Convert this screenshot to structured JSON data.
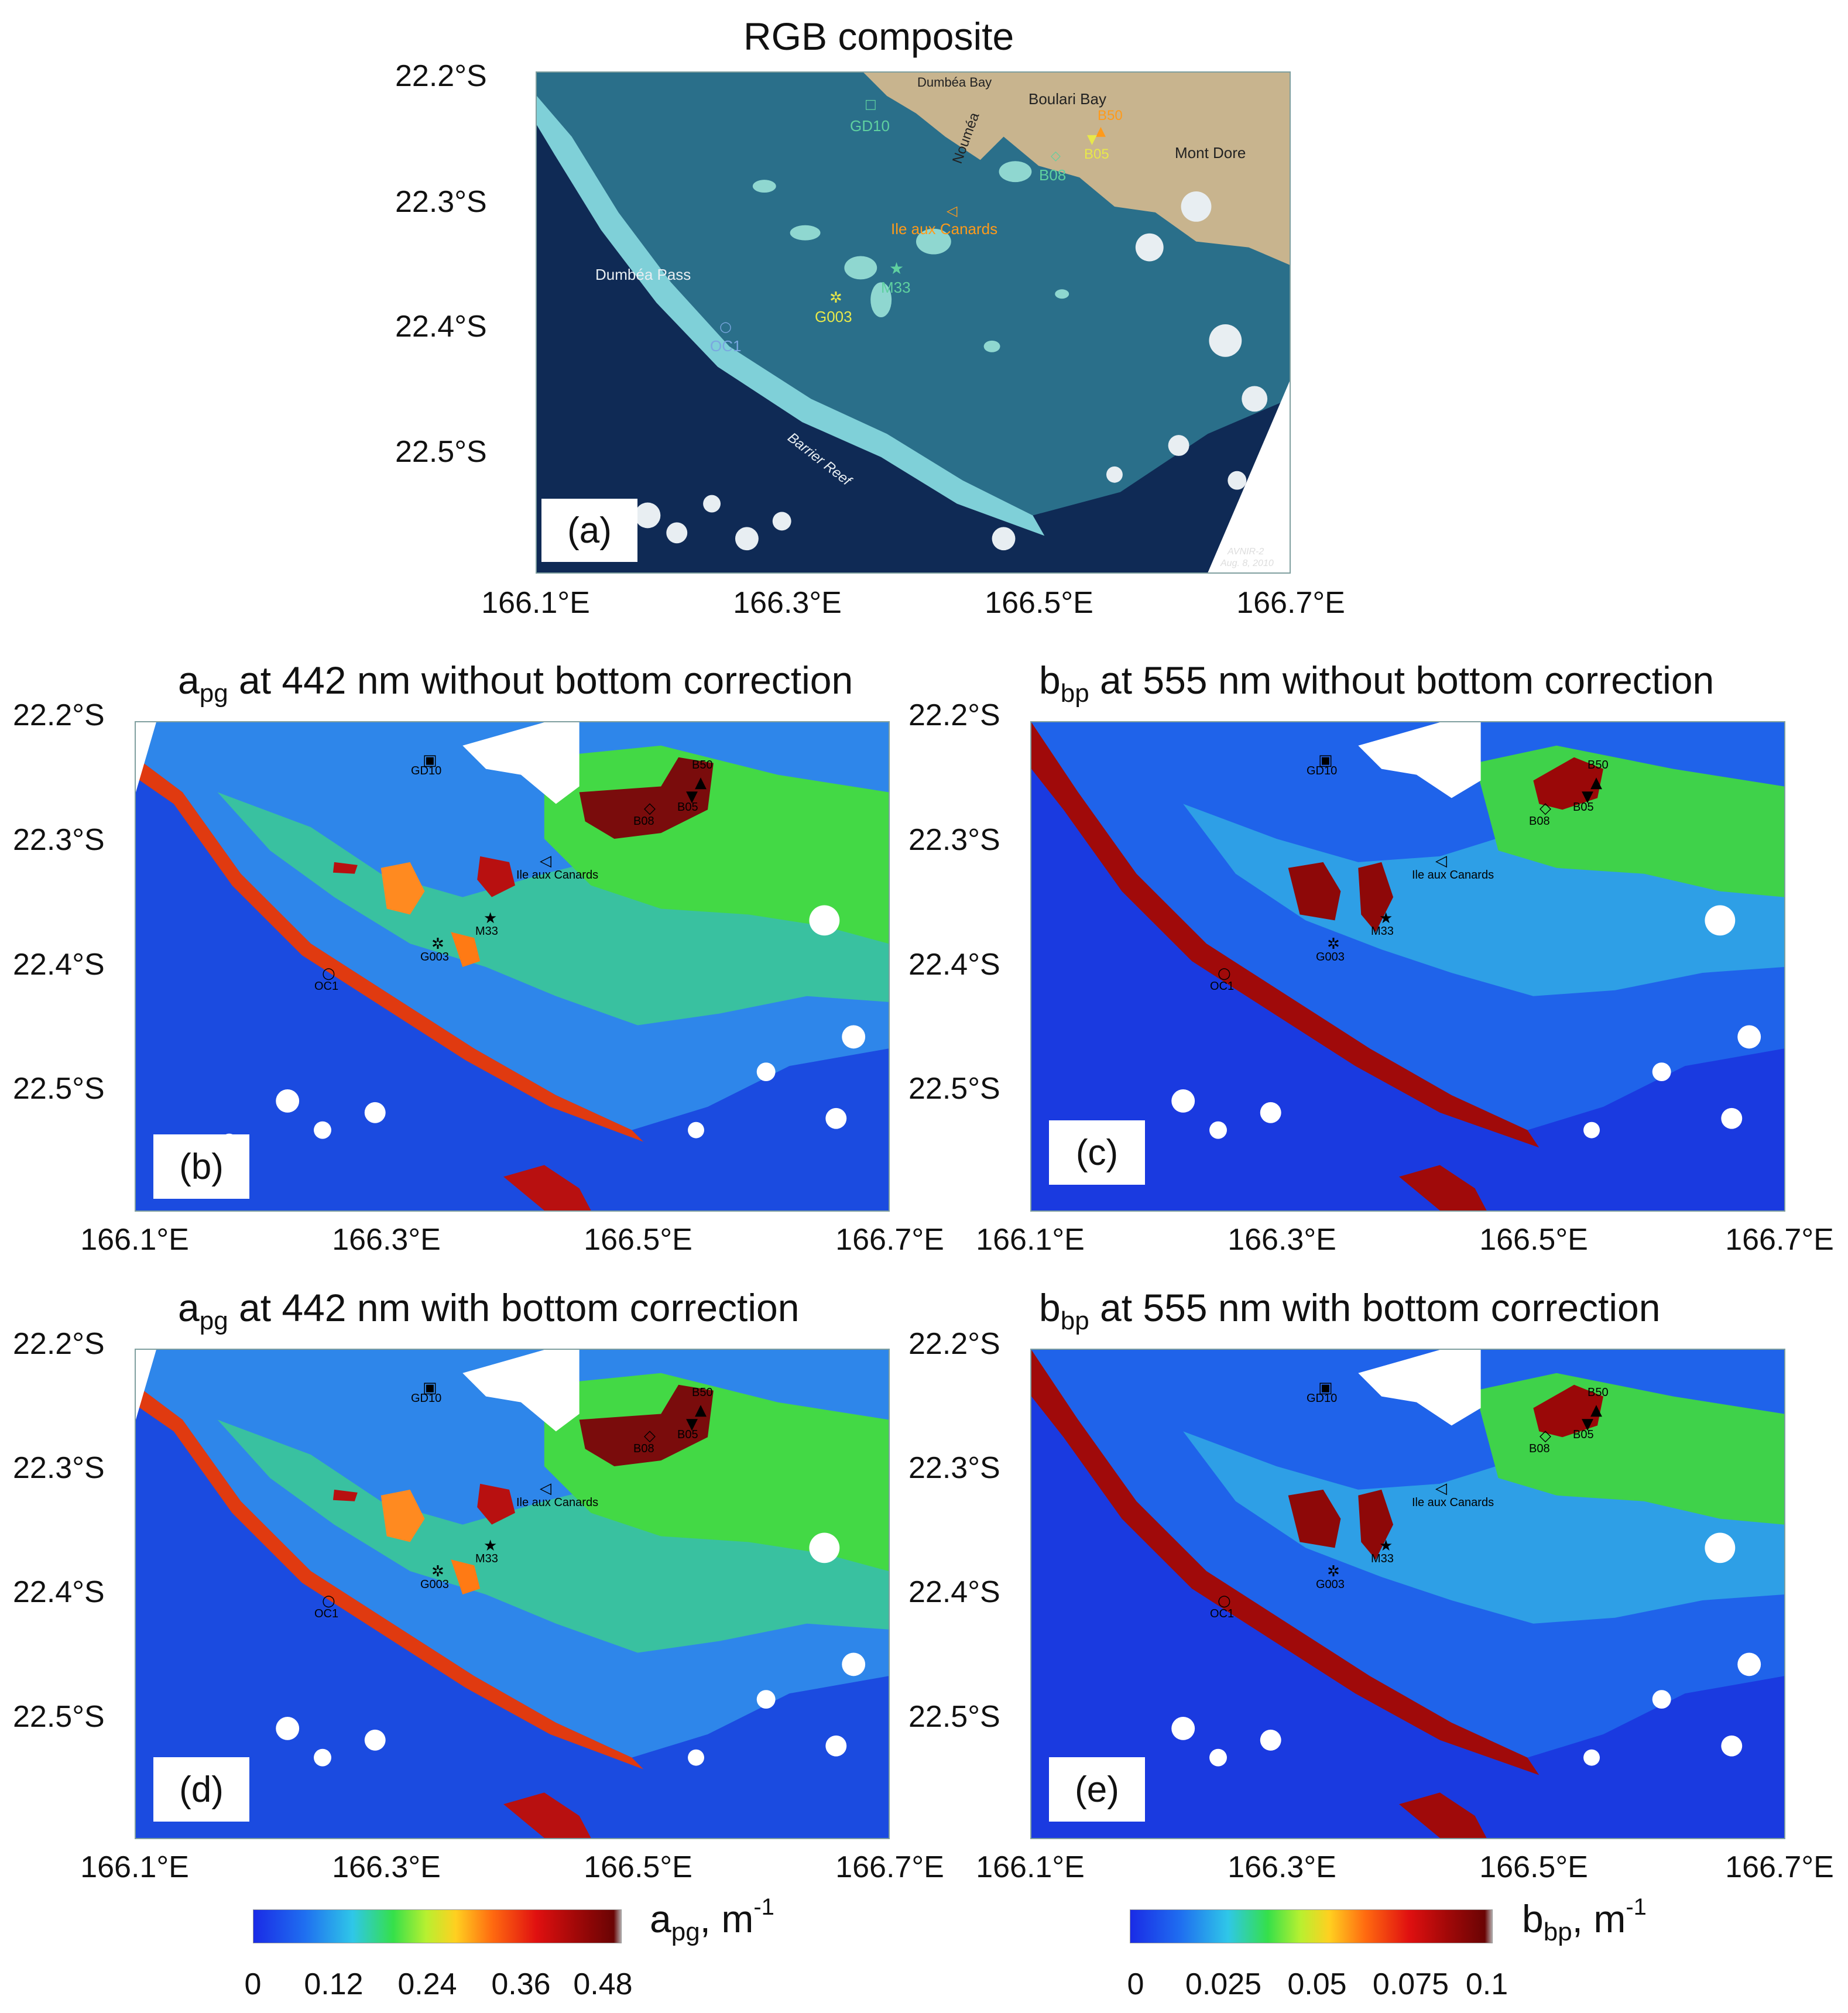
{
  "panel_a": {
    "title": "RGB composite",
    "label": "(a)",
    "credit_line1": "AVNIR-2",
    "credit_line2": "Aug. 8, 2010",
    "places": [
      "Dumbéa Bay",
      "Boulari Bay",
      "Nouméa",
      "Mont Dore",
      "Dumbéa Pass",
      "Barrier Reef"
    ],
    "stations": [
      "GD10",
      "B50",
      "B05",
      "B08",
      "Ile aux Canards",
      "M33",
      "G003",
      "OC1"
    ]
  },
  "panel_b": {
    "title_a": "a",
    "title_sub": "pg",
    "title_rest": " at 442 nm without bottom correction",
    "label": "(b)"
  },
  "panel_c": {
    "title_a": "b",
    "title_sub": "bp",
    "title_rest": " at 555 nm without bottom correction",
    "label": "(c)"
  },
  "panel_d": {
    "title_a": "a",
    "title_sub": "pg",
    "title_rest": " at 442 nm with bottom correction",
    "label": "(d)"
  },
  "panel_e": {
    "title_a": "b",
    "title_sub": "bp",
    "title_rest": " at 555 nm with bottom correction",
    "label": "(e)"
  },
  "map_stations": [
    "GD10",
    "B50",
    "B05",
    "B08",
    "Ile aux Canards",
    "M33",
    "G003",
    "OC1"
  ],
  "lat_ticks": [
    "22.2°S",
    "22.3°S",
    "22.4°S",
    "22.5°S"
  ],
  "lon_ticks": [
    "166.1°E",
    "166.3°E",
    "166.5°E",
    "166.7°E"
  ],
  "colorbar_apg": {
    "var": "a",
    "sub": "pg",
    "unit": ", m",
    "exp": "-1",
    "ticks": [
      "0",
      "0.12",
      "0.24",
      "0.36",
      "0.48"
    ]
  },
  "colorbar_bbp": {
    "var": "b",
    "sub": "bp",
    "unit": ", m",
    "exp": "-1",
    "ticks": [
      "0",
      "0.025",
      "0.05",
      "0.075",
      "0.1"
    ]
  },
  "colors": {
    "ocean_rgb": "#0f2a55",
    "land_rgb": "#c8b48e",
    "lagoon_rgb": "#2a6f8a",
    "reef_rgb": "#7fd0d8",
    "station_green": "#5fd0a0",
    "station_orange": "#ff9a1a",
    "station_yellow": "#e8e84a",
    "station_blue": "#7aa7e0"
  }
}
